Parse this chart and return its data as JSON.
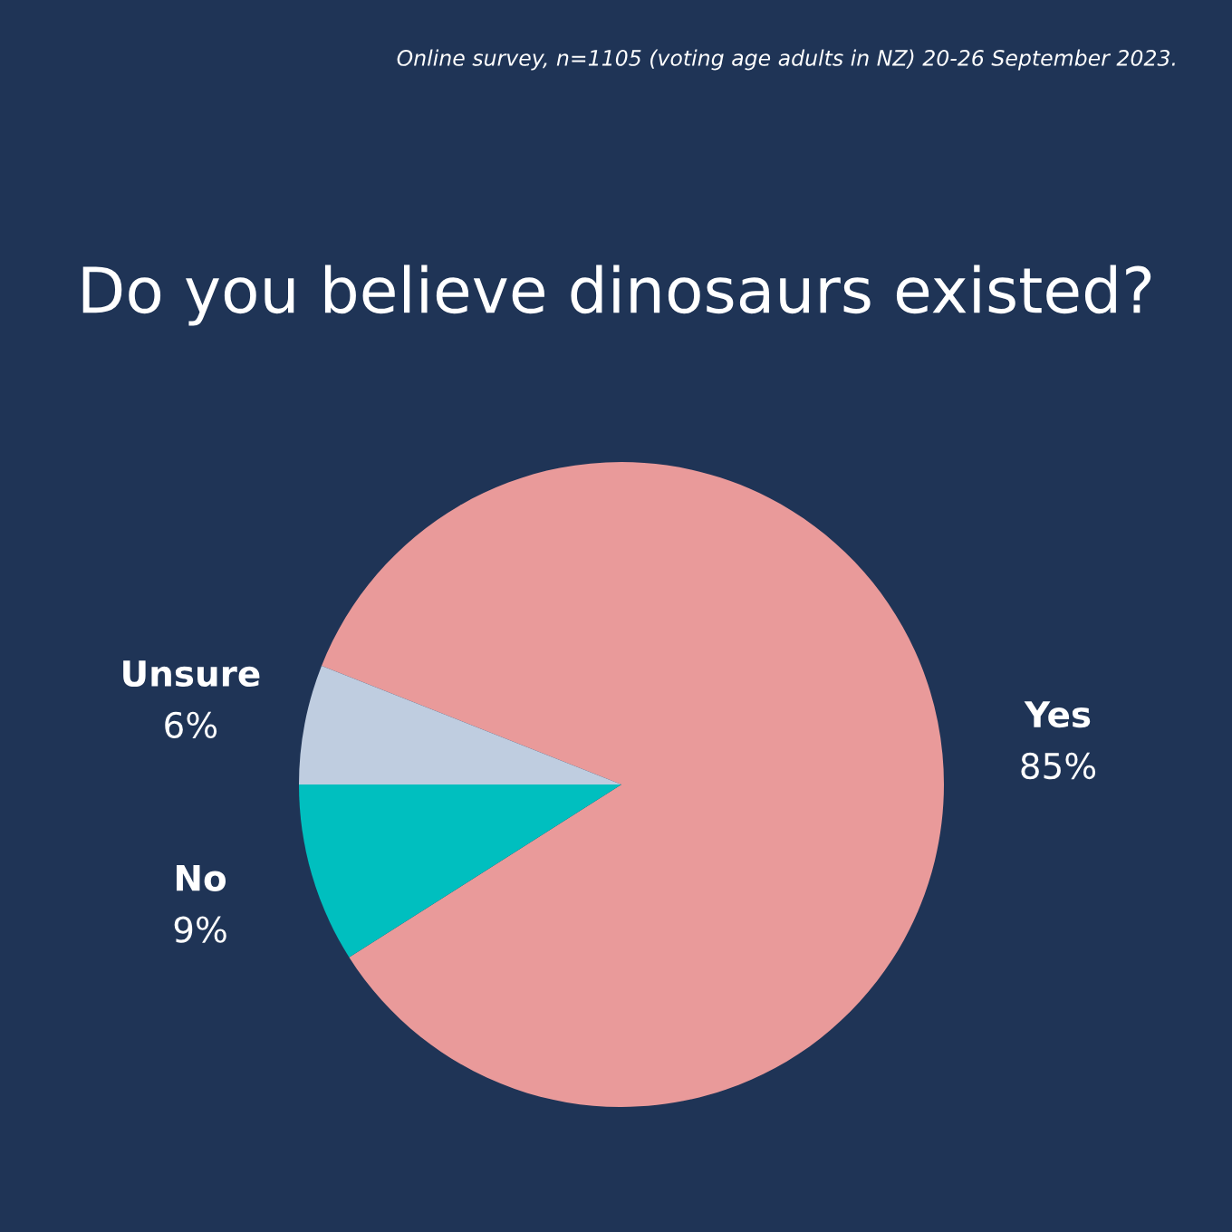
{
  "chart_data": {
    "type": "pie",
    "title": "Do you believe dinosaurs existed?",
    "annotations": [
      "Online survey, n=1105 (voting age adults in NZ) 20-26 September 2023."
    ],
    "categories": [
      "Yes",
      "No",
      "Unsure"
    ],
    "values": [
      85,
      9,
      6
    ],
    "colors": [
      "#e99a9a",
      "#00bfbf",
      "#bfcde0"
    ],
    "value_labels": [
      "85%",
      "9%",
      "6%"
    ]
  }
}
